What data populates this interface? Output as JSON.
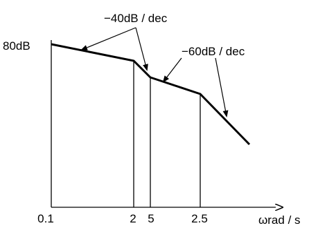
{
  "diagram": {
    "y_value_label": "80dB",
    "slope_labels": {
      "first": "−40dB / dec",
      "second": "−60dB / dec"
    },
    "x_tick_labels": [
      "0.1",
      "2",
      "5",
      "2.5"
    ],
    "x_axis_label": "ωrad / s",
    "colors": {
      "line": "#000000",
      "background": "#ffffff"
    }
  }
}
